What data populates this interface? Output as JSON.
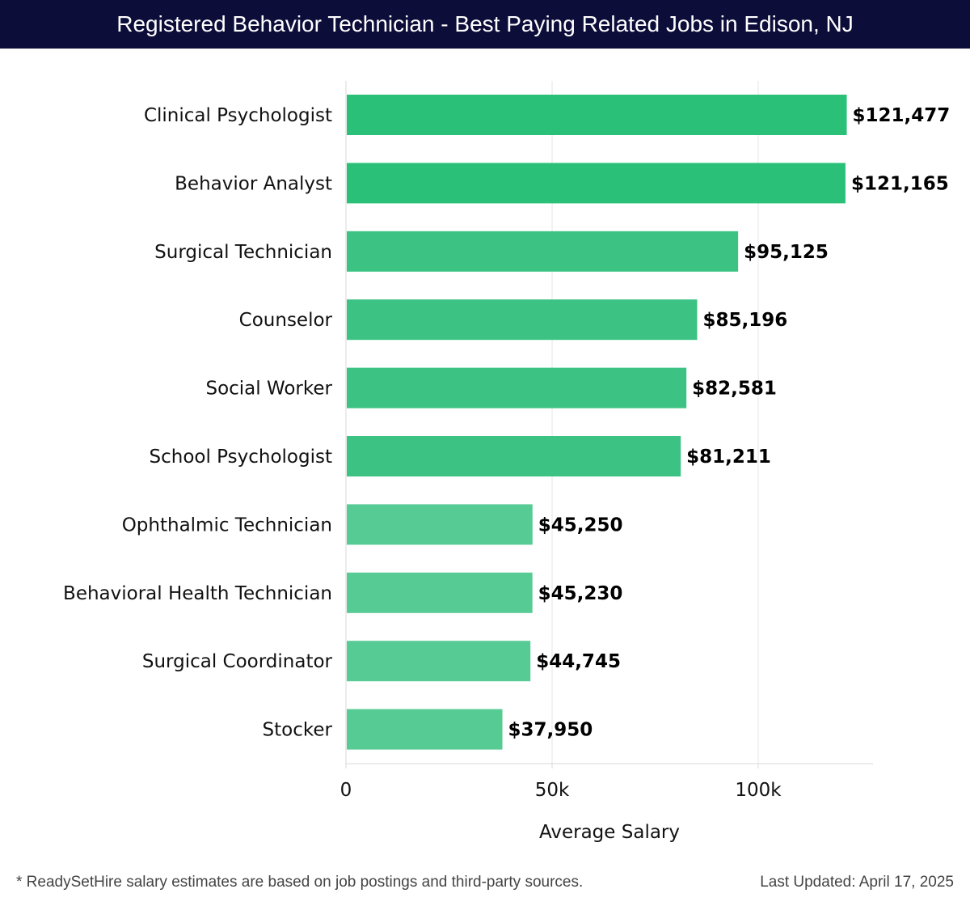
{
  "colors": {
    "title_bg": "#0d0d3a",
    "bar_dark": "#2ac077",
    "bar_mid": "#3cc384",
    "bar_light": "#56cb94",
    "grid": "#e6e6e6"
  },
  "chart_data": {
    "type": "bar",
    "orientation": "horizontal",
    "title": "Registered Behavior Technician - Best Paying Related Jobs in Edison, NJ",
    "xlabel": "Average Salary",
    "ylabel": "",
    "xlim": [
      0,
      128000
    ],
    "xticks": [
      {
        "value": 0,
        "label": "0"
      },
      {
        "value": 50000,
        "label": "50k"
      },
      {
        "value": 100000,
        "label": "100k"
      }
    ],
    "grid": true,
    "categories": [
      "Clinical Psychologist",
      "Behavior Analyst",
      "Surgical Technician",
      "Counselor",
      "Social Worker",
      "School Psychologist",
      "Ophthalmic Technician",
      "Behavioral Health Technician",
      "Surgical Coordinator",
      "Stocker"
    ],
    "values": [
      121477,
      121165,
      95125,
      85196,
      82581,
      81211,
      45250,
      45230,
      44745,
      37950
    ],
    "value_labels": [
      "$121,477",
      "$121,165",
      "$95,125",
      "$85,196",
      "$82,581",
      "$81,211",
      "$45,250",
      "$45,230",
      "$44,745",
      "$37,950"
    ]
  },
  "footer": {
    "note": "* ReadySetHire salary estimates are based on job postings and third-party sources.",
    "updated": "Last Updated: April 17, 2025"
  }
}
